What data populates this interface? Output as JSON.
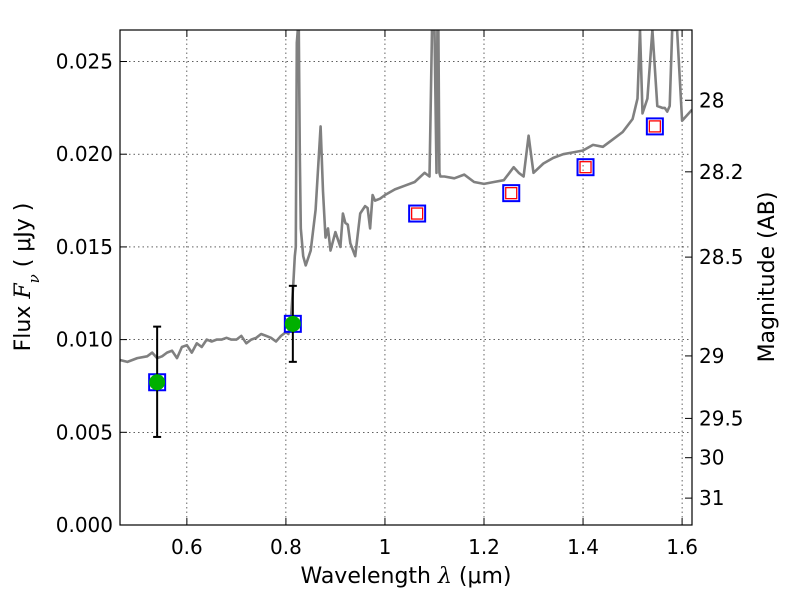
{
  "chart_data": {
    "type": "line",
    "xlabel": "Wavelength  λ (μm)",
    "xlabel_parts": {
      "text": "Wavelength  ",
      "symbol": "λ",
      "unit": " (μm)"
    },
    "ylabel": "Flux  Fν  ( μJy )",
    "ylabel_parts": {
      "text": "Flux  ",
      "symbol": "F",
      "subscript": "ν",
      "unit": "  ( μJy )"
    },
    "y2label": "Magnitude (AB)",
    "xlim": [
      0.465,
      1.62
    ],
    "ylim": [
      0.0,
      0.0267
    ],
    "grid": true,
    "x_ticks": [
      {
        "value": 0.6,
        "label": "0.6"
      },
      {
        "value": 0.8,
        "label": "0.8"
      },
      {
        "value": 1.0,
        "label": "1"
      },
      {
        "value": 1.2,
        "label": "1.2"
      },
      {
        "value": 1.4,
        "label": "1.4"
      },
      {
        "value": 1.6,
        "label": "1.6"
      }
    ],
    "y_ticks": [
      {
        "value": 0.0,
        "label": "0.000"
      },
      {
        "value": 0.005,
        "label": "0.005"
      },
      {
        "value": 0.01,
        "label": "0.010"
      },
      {
        "value": 0.015,
        "label": "0.015"
      },
      {
        "value": 0.02,
        "label": "0.020"
      },
      {
        "value": 0.025,
        "label": "0.025"
      }
    ],
    "y2_ticks": [
      {
        "flux": 0.02291,
        "label": "28"
      },
      {
        "flux": 0.01905,
        "label": "28.2"
      },
      {
        "flux": 0.01445,
        "label": "28.5"
      },
      {
        "flux": 0.00912,
        "label": "29"
      },
      {
        "flux": 0.00575,
        "label": "29.5"
      },
      {
        "flux": 0.00363,
        "label": "30"
      },
      {
        "flux": 0.00145,
        "label": "31"
      }
    ],
    "series": [
      {
        "name": "model_spectrum",
        "color": "#808080",
        "x": [
          0.465,
          0.48,
          0.5,
          0.52,
          0.53,
          0.54,
          0.55,
          0.56,
          0.57,
          0.58,
          0.59,
          0.6,
          0.61,
          0.62,
          0.63,
          0.64,
          0.65,
          0.66,
          0.67,
          0.68,
          0.69,
          0.7,
          0.71,
          0.72,
          0.73,
          0.74,
          0.75,
          0.76,
          0.77,
          0.78,
          0.79,
          0.8,
          0.805,
          0.81,
          0.815,
          0.818,
          0.82,
          0.822,
          0.824,
          0.826,
          0.828,
          0.83,
          0.835,
          0.84,
          0.85,
          0.86,
          0.87,
          0.875,
          0.88,
          0.885,
          0.89,
          0.9,
          0.91,
          0.915,
          0.92,
          0.925,
          0.93,
          0.94,
          0.95,
          0.96,
          0.965,
          0.97,
          0.975,
          0.98,
          0.99,
          1.0,
          1.02,
          1.04,
          1.06,
          1.08,
          1.09,
          1.095,
          1.1,
          1.104,
          1.106,
          1.108,
          1.11,
          1.112,
          1.12,
          1.14,
          1.16,
          1.18,
          1.2,
          1.22,
          1.24,
          1.26,
          1.27,
          1.28,
          1.29,
          1.295,
          1.3,
          1.32,
          1.34,
          1.36,
          1.38,
          1.4,
          1.42,
          1.44,
          1.46,
          1.48,
          1.5,
          1.51,
          1.515,
          1.52,
          1.53,
          1.54,
          1.55,
          1.56,
          1.565,
          1.57,
          1.575,
          1.58,
          1.59,
          1.6,
          1.62
        ],
        "y": [
          0.0089,
          0.0088,
          0.009,
          0.0091,
          0.0093,
          0.009,
          0.0091,
          0.0093,
          0.0094,
          0.009,
          0.0096,
          0.0097,
          0.0093,
          0.0098,
          0.0096,
          0.01,
          0.0099,
          0.01,
          0.01,
          0.0101,
          0.01,
          0.01,
          0.0102,
          0.0098,
          0.01,
          0.0101,
          0.0103,
          0.0102,
          0.0101,
          0.0099,
          0.0102,
          0.0104,
          0.0103,
          0.0111,
          0.013,
          0.0145,
          0.015,
          0.026,
          0.0267,
          0.0267,
          0.02,
          0.016,
          0.0145,
          0.014,
          0.0148,
          0.017,
          0.0215,
          0.018,
          0.0155,
          0.016,
          0.0148,
          0.0158,
          0.015,
          0.0168,
          0.0163,
          0.0162,
          0.0152,
          0.0145,
          0.0168,
          0.0172,
          0.0171,
          0.016,
          0.0178,
          0.0175,
          0.0176,
          0.0178,
          0.0181,
          0.0183,
          0.0185,
          0.019,
          0.0188,
          0.0267,
          0.0267,
          0.019,
          0.0267,
          0.0267,
          0.019,
          0.0188,
          0.0188,
          0.0187,
          0.0189,
          0.0185,
          0.0184,
          0.0185,
          0.0186,
          0.0193,
          0.019,
          0.0188,
          0.021,
          0.02,
          0.019,
          0.0195,
          0.0198,
          0.02,
          0.0201,
          0.0202,
          0.0205,
          0.0204,
          0.0208,
          0.0212,
          0.0219,
          0.023,
          0.0267,
          0.0222,
          0.023,
          0.0267,
          0.0226,
          0.0225,
          0.0225,
          0.0223,
          0.0226,
          0.0267,
          0.0267,
          0.0218,
          0.0224
        ]
      }
    ],
    "markers": {
      "observed_points": [
        {
          "x": 0.54,
          "y": 0.0077,
          "err_low": 0.00475,
          "err_high": 0.0107,
          "color": "#00b000"
        },
        {
          "x": 0.814,
          "y": 0.01085,
          "err_low": 0.0088,
          "err_high": 0.0129,
          "color": "#00b000"
        }
      ],
      "model_bands": [
        {
          "x": 0.54,
          "y": 0.0077
        },
        {
          "x": 0.814,
          "y": 0.01085
        },
        {
          "x": 1.065,
          "y": 0.0168
        },
        {
          "x": 1.255,
          "y": 0.0179
        },
        {
          "x": 1.405,
          "y": 0.0193
        },
        {
          "x": 1.545,
          "y": 0.0215
        }
      ],
      "upper_limits": [
        {
          "x": 1.065,
          "y": 0.0168
        },
        {
          "x": 1.255,
          "y": 0.0179
        },
        {
          "x": 1.405,
          "y": 0.0193
        },
        {
          "x": 1.545,
          "y": 0.0215
        }
      ],
      "square_color": "#0000ff",
      "inner_square_color": "#ff0000",
      "errorbar_color": "#000000"
    }
  }
}
